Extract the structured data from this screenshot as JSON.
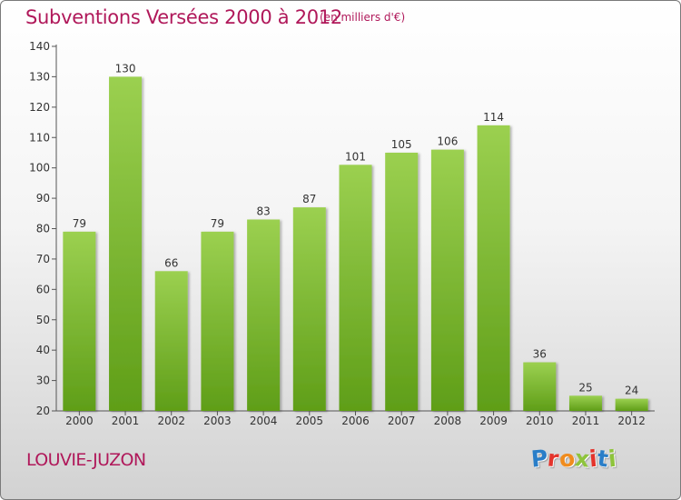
{
  "title": "Subventions Versées 2000 à 2012",
  "unit_note": "(en milliers d'€)",
  "commune": "LOUVIE-JUZON",
  "brand": {
    "letters": [
      "P",
      "r",
      "o",
      "x",
      "i",
      "t",
      "i"
    ],
    "colors": [
      "#2a7ec8",
      "#e4342c",
      "#f08c1e",
      "#8ec43c",
      "#e4342c",
      "#2a7ec8",
      "#8ec43c"
    ]
  },
  "colors": {
    "title": "#b0185a",
    "bar_top": "#9bd050",
    "bar_bottom": "#5f9e18",
    "axis": "#555555"
  },
  "chart_data": {
    "type": "bar",
    "categories": [
      "2000",
      "2001",
      "2002",
      "2003",
      "2004",
      "2005",
      "2006",
      "2007",
      "2008",
      "2009",
      "2010",
      "2011",
      "2012"
    ],
    "values": [
      79,
      130,
      66,
      79,
      83,
      87,
      101,
      105,
      106,
      114,
      36,
      25,
      24
    ],
    "ylim": [
      20,
      140
    ],
    "yticks": [
      20,
      30,
      40,
      50,
      60,
      70,
      80,
      90,
      100,
      110,
      120,
      130,
      140
    ],
    "grid": false,
    "legend": "none",
    "data_labels": true
  }
}
